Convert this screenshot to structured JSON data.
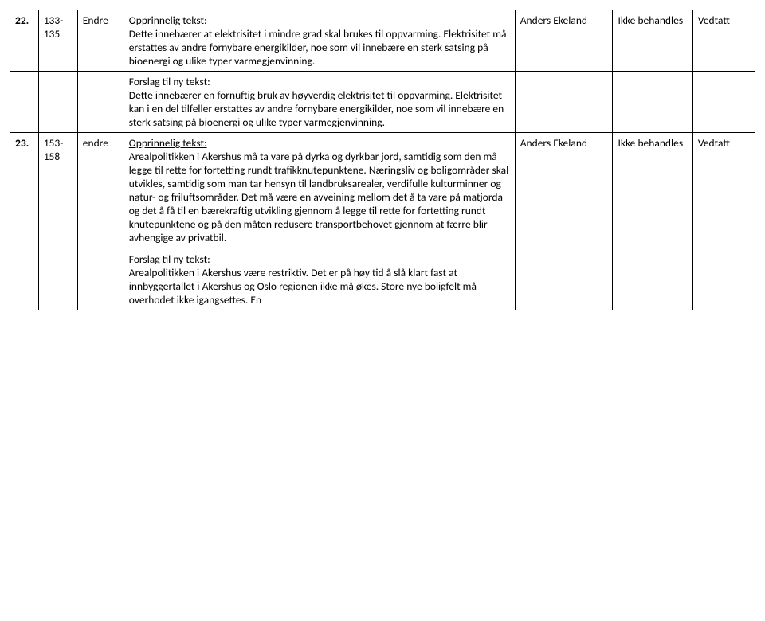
{
  "rows": [
    {
      "num": "22.",
      "lines": "133-135",
      "type": "Endre",
      "orig_label": "Opprinnelig tekst:",
      "orig_body": "Dette innebærer at elektrisitet i mindre grad skal brukes til oppvarming. Elektrisitet må erstattes av andre fornybare energikilder, noe som vil innebære en sterk satsing på bioenergi og ulike typer varmegjenvinning.",
      "who": "Anders Ekeland",
      "status": "Ikke behandles",
      "result": "Vedtatt"
    },
    {
      "num": "",
      "lines": "",
      "type": "",
      "new_label": "Forslag til ny tekst:",
      "new_body": "Dette innebærer en fornuftig bruk av høyverdig elektrisitet til oppvarming. Elektrisitet kan i en del tilfeller erstattes av andre fornybare energikilder, noe som vil innebære en sterk satsing på bioenergi og ulike typer varmegjenvinning.",
      "who": "",
      "status": "",
      "result": ""
    },
    {
      "num": "23.",
      "lines": "153-158",
      "type": "endre",
      "orig_label": "Opprinnelig tekst:",
      "orig_body": "Arealpolitikken i Akershus må ta vare på dyrka og dyrkbar jord, samtidig som den må legge til rette for fortetting rundt trafikknutepunktene. Næringsliv og boligområder skal utvikles, samtidig som man tar hensyn til landbruksarealer, verdifulle kulturminner og natur- og friluftsområder. Det må være en avveining mellom det å ta vare på matjorda og det å få til en bærekraftig utvikling gjennom å legge til rette for fortetting rundt knutepunktene og på den måten redusere transportbehovet gjennom at færre blir avhengige av privatbil.",
      "new_label": "Forslag til ny tekst:",
      "new_body": "Arealpolitikken i Akershus være restriktiv. Det er på høy tid å slå klart fast at innbyggertallet i Akershus og Oslo regionen ikke må økes. Store nye boligfelt må overhodet ikke igangsettes. En",
      "who": "Anders Ekeland",
      "status": "Ikke behandles",
      "result": "Vedtatt"
    }
  ]
}
